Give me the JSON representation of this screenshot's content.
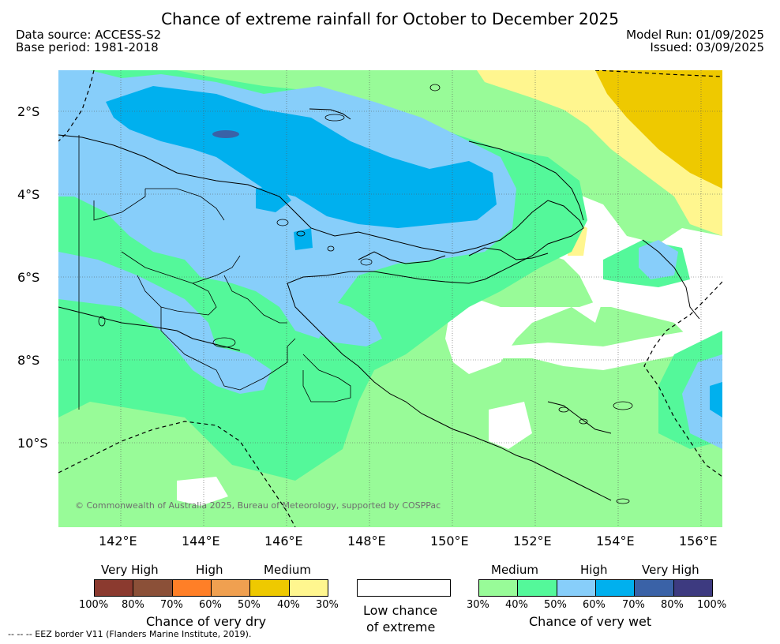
{
  "title": "Chance of extreme rainfall for October to December 2025",
  "header": {
    "data_source": "Data source: ACCESS-S2",
    "base_period": "Base period: 1981-2018",
    "model_run": "Model Run: 01/09/2025",
    "issued": "Issued: 03/09/2025"
  },
  "axes": {
    "y_labels": [
      "2°S",
      "4°S",
      "6°S",
      "8°S",
      "10°S"
    ],
    "x_labels": [
      "142°E",
      "144°E",
      "146°E",
      "148°E",
      "150°E",
      "152°E",
      "154°E",
      "156°E"
    ]
  },
  "copyright": "© Commonwealth of Australia 2025, Bureau of Meteorology, supported by COSPPac",
  "legend": {
    "dry": {
      "categories": [
        "Very High",
        "High",
        "Medium"
      ],
      "percents": [
        "100%",
        "80%",
        "70%",
        "60%",
        "50%",
        "40%",
        "30%"
      ],
      "colors": [
        "#8b3a2f",
        "#8b5038",
        "#ff7f27",
        "#f0a050",
        "#eec900",
        "#fff68f"
      ],
      "caption": "Chance of very dry"
    },
    "neutral": {
      "caption_line1": "Low chance",
      "caption_line2": "of extreme"
    },
    "wet": {
      "categories": [
        "Medium",
        "High",
        "Very High"
      ],
      "percents": [
        "30%",
        "40%",
        "50%",
        "60%",
        "70%",
        "80%",
        "100%"
      ],
      "colors": [
        "#98fb98",
        "#54f89a",
        "#87cefa",
        "#00b0ee",
        "#3a62a7",
        "#3d3a80"
      ],
      "caption": "Chance of very wet"
    }
  },
  "eez_note": "--  --  -- EEZ border V11 (Flanders Marine Institute, 2019)."
}
